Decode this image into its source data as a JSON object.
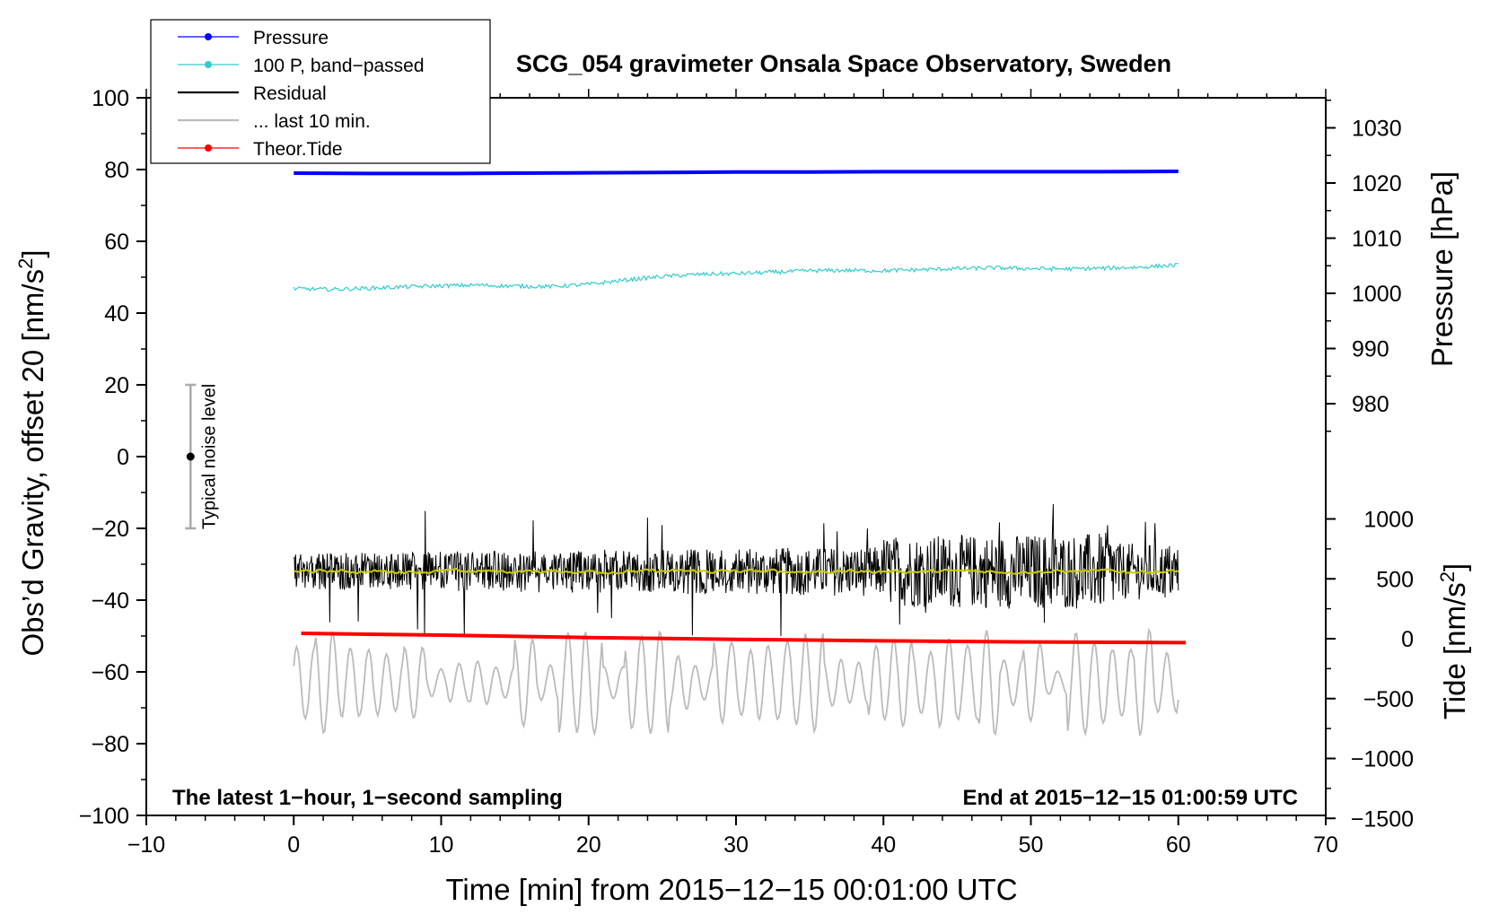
{
  "chart_data": {
    "type": "line",
    "title": "SCG_054 gravimeter Onsala Space Observatory, Sweden",
    "xlabel": "Time [min] from 2015−12−15 00:01:00 UTC",
    "ylabel_left": "Obs’d Gravity, offset 20 [nm/s²]",
    "ylabel_right_top": "Pressure [hPa]",
    "ylabel_right_bottom": "Tide [nm/s²]",
    "xlim": [
      -10,
      70
    ],
    "ylim_left": [
      -100,
      100
    ],
    "pressure_axis_range": [
      970,
      1035
    ],
    "tide_axis_range": [
      -1500,
      1000
    ],
    "x_ticks": [
      {
        "value": -10,
        "label": "−10"
      },
      {
        "value": 0,
        "label": "0"
      },
      {
        "value": 10,
        "label": "10"
      },
      {
        "value": 20,
        "label": "20"
      },
      {
        "value": 30,
        "label": "30"
      },
      {
        "value": 40,
        "label": "40"
      },
      {
        "value": 50,
        "label": "50"
      },
      {
        "value": 60,
        "label": "60"
      },
      {
        "value": 70,
        "label": "70"
      }
    ],
    "y_ticks_left": [
      {
        "value": 100,
        "label": "100"
      },
      {
        "value": 80,
        "label": "80"
      },
      {
        "value": 60,
        "label": "60"
      },
      {
        "value": 40,
        "label": "40"
      },
      {
        "value": 20,
        "label": "20"
      },
      {
        "value": 0,
        "label": "0"
      },
      {
        "value": -20,
        "label": "−20"
      },
      {
        "value": -40,
        "label": "−40"
      },
      {
        "value": -60,
        "label": "−60"
      },
      {
        "value": -80,
        "label": "−80"
      },
      {
        "value": -100,
        "label": "−100"
      }
    ],
    "pressure_ticks": [
      {
        "value": 1030,
        "label": "1030"
      },
      {
        "value": 1020,
        "label": "1020"
      },
      {
        "value": 1010,
        "label": "1010"
      },
      {
        "value": 1000,
        "label": "1000"
      },
      {
        "value": 990,
        "label": "990"
      },
      {
        "value": 980,
        "label": "980"
      }
    ],
    "tide_ticks": [
      {
        "value": 1000,
        "label": "1000"
      },
      {
        "value": 500,
        "label": "500"
      },
      {
        "value": 0,
        "label": "0"
      },
      {
        "value": -500,
        "label": "−500"
      },
      {
        "value": -1000,
        "label": "−1000"
      },
      {
        "value": -1500,
        "label": "−1500"
      }
    ],
    "legend": [
      {
        "label": "Pressure",
        "color": "#0000ff",
        "marker": true
      },
      {
        "label": "100 P, band−passed",
        "color": "#33cccc",
        "marker": true
      },
      {
        "label": "Residual",
        "color": "#000000",
        "marker": false
      },
      {
        "label": "... last 10 min.",
        "color": "#bbbbbb",
        "marker": false
      },
      {
        "label": "Theor.Tide",
        "color": "#ff0000",
        "marker": true
      }
    ],
    "annotations": {
      "left": "The latest 1−hour, 1−second sampling",
      "right": "End at 2015−12−15 01:00:59 UTC",
      "noise_label": "Typical noise level"
    },
    "noise_bar": {
      "x": -7,
      "center": 0,
      "low": -20,
      "high": 20
    },
    "series": [
      {
        "name": "Pressure",
        "color": "#0000ff",
        "axis": "left",
        "x": [
          0,
          5,
          10,
          15,
          20,
          25,
          30,
          35,
          40,
          45,
          50,
          55,
          60
        ],
        "y": [
          79.0,
          78.9,
          78.9,
          79.0,
          79.1,
          79.2,
          79.3,
          79.3,
          79.4,
          79.4,
          79.4,
          79.4,
          79.5
        ]
      },
      {
        "name": "100 P, band-passed",
        "color": "#33cccc",
        "axis": "left",
        "x": [
          0,
          2.5,
          5,
          7.5,
          10,
          12.5,
          15,
          17.5,
          20,
          22.5,
          25,
          27.5,
          30,
          32.5,
          35,
          37.5,
          40,
          42.5,
          45,
          47.5,
          50,
          52.5,
          55,
          57.5,
          60
        ],
        "y": [
          46.8,
          46.6,
          46.9,
          47.3,
          47.6,
          47.8,
          47.5,
          47.4,
          48.0,
          49.2,
          50.2,
          50.8,
          51.0,
          51.4,
          51.8,
          51.9,
          51.8,
          52.1,
          52.4,
          52.6,
          52.4,
          52.3,
          52.5,
          52.8,
          53.4
        ]
      },
      {
        "name": "Residual",
        "color": "#000000",
        "axis": "left",
        "x_range": [
          0,
          60
        ],
        "mean": -32,
        "typical_range": [
          -42,
          -22
        ],
        "extremes": [
          -50,
          -13
        ]
      },
      {
        "name": "Residual (smoothed)",
        "color": "#cccc00",
        "axis": "left",
        "x_range": [
          0,
          60
        ],
        "mean": -32,
        "range": [
          -34,
          -30
        ]
      },
      {
        "name": "... last 10 min.",
        "color": "#bbbbbb",
        "axis": "left",
        "x_range": [
          0,
          60
        ],
        "mean": -63,
        "range": [
          -78,
          -47
        ]
      },
      {
        "name": "Theor.Tide",
        "color": "#ff0000",
        "axis": "tide",
        "x": [
          0.5,
          10,
          20,
          30,
          40,
          50,
          60.5
        ],
        "y": [
          45,
          30,
          10,
          -5,
          -18,
          -27,
          -33
        ]
      }
    ]
  }
}
